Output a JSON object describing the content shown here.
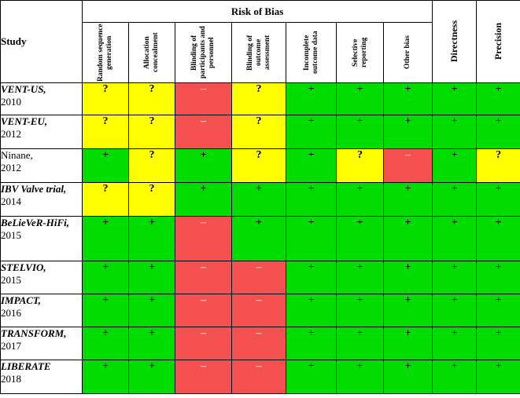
{
  "header": {
    "study": "Study",
    "risk_of_bias": "Risk of Bias",
    "directness": "Directness",
    "precision": "Precision",
    "bias_columns": [
      "Random sequence generation",
      "Allocation concealment",
      "Blinding of participants and personnel",
      "Blinding of outcome assessment",
      "Incomplete outcome data",
      "Selective reporting",
      "Other bias"
    ]
  },
  "legend_symbols": {
    "low": "+",
    "unclear": "?",
    "high": "–"
  },
  "colors": {
    "low": "#00dc00",
    "unclear": "#ffff00",
    "high": "#f4504f"
  },
  "rows": [
    {
      "name": "VENT-US,",
      "year": "2010",
      "style": "bold-italic",
      "ratings": [
        "unclear",
        "unclear",
        "high",
        "unclear",
        "low",
        "low",
        "low",
        "low",
        "low"
      ]
    },
    {
      "name": "VENT-EU,",
      "year": "2012",
      "style": "bold-italic",
      "ratings": [
        "unclear",
        "unclear",
        "high",
        "unclear",
        "low",
        "low",
        "low",
        "low",
        "low"
      ]
    },
    {
      "name": "Ninane,",
      "year": "2012",
      "style": "plain",
      "ratings": [
        "low",
        "unclear",
        "low",
        "unclear",
        "low",
        "unclear",
        "high",
        "low",
        "unclear"
      ]
    },
    {
      "name": "IBV Valve trial,",
      "year": "2014",
      "style": "bold-italic",
      "ratings": [
        "unclear",
        "unclear",
        "low",
        "low",
        "low",
        "low",
        "low",
        "low",
        "low"
      ]
    },
    {
      "name": "BeLieVeR-HiFi,",
      "year": "2015",
      "style": "bold-italic",
      "ratings": [
        "low",
        "low",
        "high",
        "low",
        "low",
        "low",
        "low",
        "low",
        "low"
      ]
    },
    {
      "name": "STELVIO,",
      "year": "2015",
      "style": "bold-italic",
      "ratings": [
        "low",
        "low",
        "high",
        "high",
        "low",
        "low",
        "low",
        "low",
        "low"
      ]
    },
    {
      "name": "IMPACT,",
      "year": "2016",
      "style": "bold-italic",
      "ratings": [
        "low",
        "low",
        "high",
        "high",
        "low",
        "low",
        "low",
        "low",
        "low"
      ]
    },
    {
      "name": "TRANSFORM,",
      "year": "2017",
      "style": "bold-italic",
      "ratings": [
        "low",
        "low",
        "high",
        "high",
        "low",
        "low",
        "low",
        "low",
        "low"
      ]
    },
    {
      "name": "LIBERATE",
      "year": "2018",
      "style": "bold-italic",
      "ratings": [
        "low",
        "low",
        "high",
        "high",
        "low",
        "low",
        "low",
        "low",
        "low"
      ]
    }
  ]
}
